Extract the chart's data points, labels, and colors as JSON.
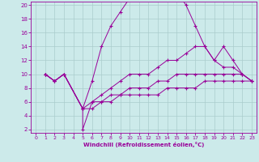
{
  "xlabel": "Windchill (Refroidissement éolien,°C)",
  "bg_color": "#cceaea",
  "line_color": "#990099",
  "grid_color": "#aacccc",
  "xlim": [
    -0.5,
    23.5
  ],
  "ylim": [
    1.5,
    20.5
  ],
  "xticks": [
    0,
    1,
    2,
    3,
    4,
    5,
    6,
    7,
    8,
    9,
    10,
    11,
    12,
    13,
    14,
    15,
    16,
    17,
    18,
    19,
    20,
    21,
    22,
    23
  ],
  "yticks": [
    2,
    4,
    6,
    8,
    10,
    12,
    14,
    16,
    18,
    20
  ],
  "series": [
    {
      "x": [
        1,
        2,
        3,
        5,
        6,
        7,
        8,
        9,
        10,
        11,
        12,
        13,
        14,
        15,
        16,
        17,
        18,
        19,
        20,
        21,
        22,
        23
      ],
      "y": [
        10,
        9,
        10,
        5,
        9,
        14,
        17,
        19,
        21,
        21,
        21,
        21,
        21,
        22,
        20,
        17,
        14,
        12,
        14,
        12,
        10,
        9
      ]
    },
    {
      "x": [
        1,
        2,
        3,
        5,
        5,
        6,
        7,
        8,
        9,
        10,
        11,
        12,
        13,
        14,
        15,
        16,
        17,
        18,
        19,
        20,
        21,
        22,
        23
      ],
      "y": [
        10,
        9,
        10,
        5,
        2,
        6,
        7,
        8,
        9,
        10,
        10,
        10,
        11,
        12,
        12,
        13,
        14,
        14,
        12,
        11,
        11,
        10,
        9
      ]
    },
    {
      "x": [
        1,
        2,
        3,
        5,
        5,
        6,
        7,
        8,
        9,
        10,
        11,
        12,
        13,
        14,
        15,
        16,
        17,
        18,
        19,
        20,
        21,
        22,
        23
      ],
      "y": [
        10,
        9,
        10,
        5,
        5,
        6,
        6,
        7,
        7,
        8,
        8,
        8,
        9,
        9,
        10,
        10,
        10,
        10,
        10,
        10,
        10,
        10,
        9
      ]
    },
    {
      "x": [
        1,
        2,
        3,
        5,
        5,
        6,
        7,
        8,
        9,
        10,
        11,
        12,
        13,
        14,
        15,
        16,
        17,
        18,
        19,
        20,
        21,
        22,
        23
      ],
      "y": [
        10,
        9,
        10,
        5,
        5,
        5,
        6,
        6,
        7,
        7,
        7,
        7,
        7,
        8,
        8,
        8,
        8,
        9,
        9,
        9,
        9,
        9,
        9
      ]
    }
  ]
}
